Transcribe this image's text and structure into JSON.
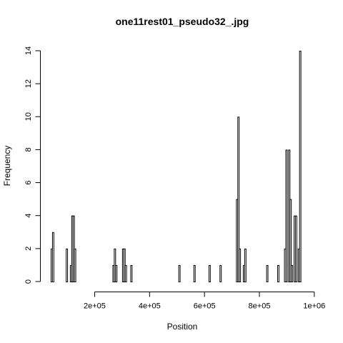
{
  "chart_data": {
    "type": "bar",
    "subtype": "histogram",
    "title": "one11rest01_pseudo32_.jpg",
    "xlabel": "Position",
    "ylabel": "Frequency",
    "xlim": [
      40000,
      990000
    ],
    "ylim": [
      0,
      14
    ],
    "bin_width": 5000,
    "x_ticks": [
      200000,
      400000,
      600000,
      800000,
      1000000
    ],
    "x_tick_labels": [
      "2e+05",
      "4e+05",
      "6e+05",
      "8e+05",
      "1e+06"
    ],
    "y_ticks": [
      0,
      2,
      4,
      6,
      8,
      10,
      12,
      14
    ],
    "y_tick_labels": [
      "0",
      "2",
      "4",
      "6",
      "8",
      "10",
      "12",
      "14"
    ],
    "bins": [
      {
        "start": 40000,
        "end": 45000,
        "count": 2
      },
      {
        "start": 45000,
        "end": 50000,
        "count": 3
      },
      {
        "start": 95000,
        "end": 100000,
        "count": 2
      },
      {
        "start": 110000,
        "end": 115000,
        "count": 1
      },
      {
        "start": 115000,
        "end": 120000,
        "count": 4
      },
      {
        "start": 120000,
        "end": 125000,
        "count": 4
      },
      {
        "start": 125000,
        "end": 130000,
        "count": 2
      },
      {
        "start": 265000,
        "end": 270000,
        "count": 1
      },
      {
        "start": 270000,
        "end": 275000,
        "count": 2
      },
      {
        "start": 275000,
        "end": 280000,
        "count": 1
      },
      {
        "start": 300000,
        "end": 305000,
        "count": 2
      },
      {
        "start": 305000,
        "end": 310000,
        "count": 2
      },
      {
        "start": 310000,
        "end": 315000,
        "count": 1
      },
      {
        "start": 330000,
        "end": 335000,
        "count": 1
      },
      {
        "start": 505000,
        "end": 510000,
        "count": 1
      },
      {
        "start": 560000,
        "end": 565000,
        "count": 1
      },
      {
        "start": 615000,
        "end": 620000,
        "count": 1
      },
      {
        "start": 655000,
        "end": 660000,
        "count": 1
      },
      {
        "start": 715000,
        "end": 720000,
        "count": 5
      },
      {
        "start": 720000,
        "end": 725000,
        "count": 10
      },
      {
        "start": 725000,
        "end": 730000,
        "count": 2
      },
      {
        "start": 740000,
        "end": 745000,
        "count": 1
      },
      {
        "start": 745000,
        "end": 750000,
        "count": 2
      },
      {
        "start": 825000,
        "end": 830000,
        "count": 1
      },
      {
        "start": 865000,
        "end": 870000,
        "count": 1
      },
      {
        "start": 890000,
        "end": 895000,
        "count": 2
      },
      {
        "start": 895000,
        "end": 900000,
        "count": 8
      },
      {
        "start": 905000,
        "end": 910000,
        "count": 8
      },
      {
        "start": 910000,
        "end": 915000,
        "count": 5
      },
      {
        "start": 915000,
        "end": 920000,
        "count": 1
      },
      {
        "start": 925000,
        "end": 930000,
        "count": 4
      },
      {
        "start": 930000,
        "end": 935000,
        "count": 4
      },
      {
        "start": 940000,
        "end": 945000,
        "count": 2
      },
      {
        "start": 945000,
        "end": 950000,
        "count": 14
      }
    ]
  }
}
